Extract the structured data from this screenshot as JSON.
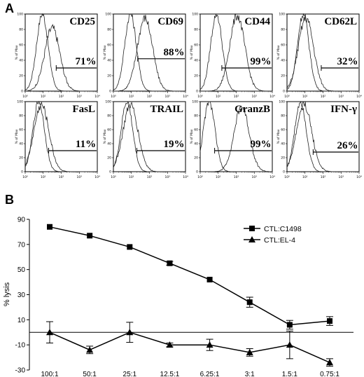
{
  "figure": {
    "panel_a_letter": "A",
    "panel_b_letter": "B"
  },
  "chart_data": [
    {
      "type": "histogram-grid",
      "panel": "A",
      "xscale": "log",
      "xlim": [
        1,
        10000
      ],
      "x_tick_labels": [
        "10⁰",
        "10¹",
        "10²",
        "10³",
        "10⁴"
      ],
      "y_ticks": [
        0,
        20,
        40,
        60,
        80,
        100
      ],
      "ylabel": "% of Max",
      "histograms": [
        {
          "marker": "CD25",
          "percent": "71%",
          "gate": [
            1.72,
            4.0
          ],
          "gate_level": 30,
          "control_peak": 0.95,
          "stained_peak": 1.5,
          "stained_height": 82
        },
        {
          "marker": "CD69",
          "percent": "88%",
          "gate": [
            1.35,
            4.0
          ],
          "gate_level": 42,
          "control_peak": 0.95,
          "stained_peak": 1.75,
          "stained_height": 95
        },
        {
          "marker": "CD44",
          "percent": "99%",
          "gate": [
            1.2,
            4.0
          ],
          "gate_level": 30,
          "control_peak": 0.9,
          "stained_peak": 2.05,
          "stained_height": 98
        },
        {
          "marker": "CD62L",
          "percent": "32%",
          "gate": [
            1.9,
            4.0
          ],
          "gate_level": 30,
          "control_peak": 0.9,
          "stained_peak": 1.05,
          "stained_height": 95
        },
        {
          "marker": "FasL",
          "percent": "11%",
          "gate": [
            1.3,
            4.0
          ],
          "gate_level": 30,
          "control_peak": 0.75,
          "stained_peak": 0.9,
          "stained_height": 95
        },
        {
          "marker": "TRAIL",
          "percent": "19%",
          "gate": [
            1.3,
            4.0
          ],
          "gate_level": 30,
          "control_peak": 0.75,
          "stained_peak": 0.95,
          "stained_height": 95
        },
        {
          "marker": "GranzB",
          "percent": "99%",
          "gate": [
            0.8,
            4.0
          ],
          "gate_level": 30,
          "control_peak": 0.5,
          "stained_peak": 2.3,
          "stained_height": 92
        },
        {
          "marker": "IFN-γ",
          "percent": "26%",
          "gate": [
            1.45,
            4.0
          ],
          "gate_level": 28,
          "control_peak": 0.75,
          "stained_peak": 0.95,
          "stained_height": 96
        }
      ]
    },
    {
      "type": "line",
      "panel": "B",
      "categories": [
        "100:1",
        "50:1",
        "25:1",
        "12.5:1",
        "6.25:1",
        "3:1",
        "1.5:1",
        "0.75:1"
      ],
      "ylabel": "% lysis",
      "ylim": [
        -30,
        90
      ],
      "yticks": [
        90,
        70,
        50,
        30,
        10,
        -10,
        -30
      ],
      "legend_position": "top-right",
      "series": [
        {
          "name": "CTL:C1498",
          "marker": "square",
          "values": [
            84,
            77,
            68,
            55,
            42,
            24,
            6,
            9
          ],
          "errors": [
            0.8,
            0.8,
            0.8,
            1.5,
            1.0,
            4.0,
            3.5,
            3.5
          ]
        },
        {
          "name": "CTL:EL-4",
          "marker": "triangle",
          "values": [
            0,
            -14,
            0,
            -10,
            -10,
            -16,
            -10,
            -24
          ],
          "errors": [
            8.5,
            3.0,
            8.0,
            1.5,
            4.5,
            3.0,
            11.0,
            3.0
          ]
        }
      ]
    }
  ]
}
